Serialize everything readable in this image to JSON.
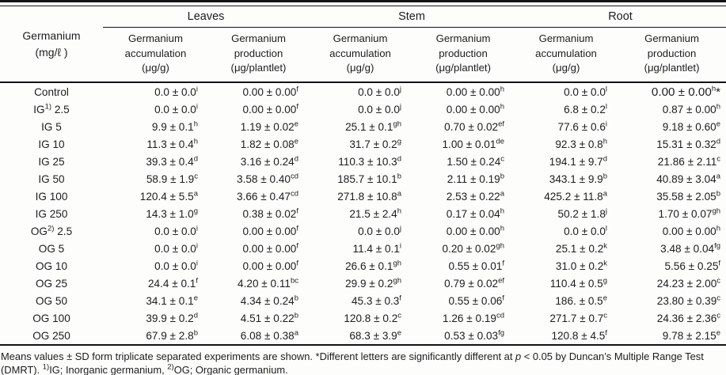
{
  "table": {
    "corner": {
      "line1": "Germanium",
      "line2": "(mg/ℓ )"
    },
    "groups": [
      "Leaves",
      "Stem",
      "Root"
    ],
    "sub": [
      [
        "Germanium",
        "accumulation",
        "(μg/g)"
      ],
      [
        "Germanium",
        "production",
        "(μg/plantlet)"
      ]
    ],
    "rows": [
      {
        "label": {
          "pre": "Control",
          "sup": "",
          "post": ""
        },
        "cells": [
          {
            "v": "0.0 ± 0.0",
            "s": "i"
          },
          {
            "v": "0.00 ± 0.00",
            "s": "f"
          },
          {
            "v": "0.0 ± 0.0",
            "s": "j"
          },
          {
            "v": "0.00 ± 0.00",
            "s": "h"
          },
          {
            "v": "0.0 ± 0.0",
            "s": "l"
          },
          {
            "v": "0.00 ± 0.00",
            "s": "h",
            "star": "*",
            "big": true
          }
        ]
      },
      {
        "label": {
          "pre": "IG",
          "sup": "1)",
          "post": " 2.5"
        },
        "cells": [
          {
            "v": "0.0 ± 0.0",
            "s": "i"
          },
          {
            "v": "0.00 ± 0.00",
            "s": "f"
          },
          {
            "v": "0.0 ± 0.0",
            "s": "j"
          },
          {
            "v": "0.00 ± 0.00",
            "s": "h"
          },
          {
            "v": "6.8 ± 0.2",
            "s": "l"
          },
          {
            "v": "0.87 ± 0.00",
            "s": "h"
          }
        ]
      },
      {
        "label": {
          "pre": "IG 5",
          "sup": "",
          "post": ""
        },
        "cells": [
          {
            "v": "9.9 ± 0.1",
            "s": "h"
          },
          {
            "v": "1.19 ± 0.02",
            "s": "e"
          },
          {
            "v": "25.1 ± 0.1",
            "s": "gh"
          },
          {
            "v": "0.70 ± 0.02",
            "s": "ef"
          },
          {
            "v": "77.6 ± 0.6",
            "s": "i"
          },
          {
            "v": "9.18 ± 0.60",
            "s": "e"
          }
        ]
      },
      {
        "label": {
          "pre": "IG 10",
          "sup": "",
          "post": ""
        },
        "cells": [
          {
            "v": "11.3 ± 0.4",
            "s": "h"
          },
          {
            "v": "1.82 ± 0.08",
            "s": "e"
          },
          {
            "v": "31.7 ± 0.2",
            "s": "g"
          },
          {
            "v": "1.00 ± 0.01",
            "s": "de"
          },
          {
            "v": "92.3 ± 0.8",
            "s": "h"
          },
          {
            "v": "15.31 ± 0.32",
            "s": "d"
          }
        ]
      },
      {
        "label": {
          "pre": "IG 25",
          "sup": "",
          "post": ""
        },
        "cells": [
          {
            "v": "39.3 ± 0.4",
            "s": "d"
          },
          {
            "v": "3.16 ± 0.24",
            "s": "d"
          },
          {
            "v": "110.3 ± 10.3",
            "s": "d"
          },
          {
            "v": "1.50 ± 0.24",
            "s": "c"
          },
          {
            "v": "194.1 ± 9.7",
            "s": "d"
          },
          {
            "v": "21.86 ± 2.11",
            "s": "c"
          }
        ]
      },
      {
        "label": {
          "pre": "IG 50",
          "sup": "",
          "post": ""
        },
        "cells": [
          {
            "v": "58.9 ± 1.9",
            "s": "c"
          },
          {
            "v": "3.58 ± 0.40",
            "s": "cd"
          },
          {
            "v": "185.7 ± 10.1",
            "s": "b"
          },
          {
            "v": "2.11 ± 0.19",
            "s": "b"
          },
          {
            "v": "343.1 ± 9.9",
            "s": "b"
          },
          {
            "v": "40.89 ± 3.04",
            "s": "a"
          }
        ]
      },
      {
        "label": {
          "pre": "IG 100",
          "sup": "",
          "post": ""
        },
        "cells": [
          {
            "v": "120.4 ± 5.5",
            "s": "a"
          },
          {
            "v": "3.66 ± 0.47",
            "s": "cd"
          },
          {
            "v": "271.8 ± 10.8",
            "s": "a"
          },
          {
            "v": "2.53 ± 0.22",
            "s": "a"
          },
          {
            "v": "425.2 ± 11.8",
            "s": "a"
          },
          {
            "v": "35.58 ± 2.05",
            "s": "b"
          }
        ]
      },
      {
        "label": {
          "pre": "IG 250",
          "sup": "",
          "post": ""
        },
        "cells": [
          {
            "v": "14.3 ± 1.0",
            "s": "g"
          },
          {
            "v": "0.38 ± 0.02",
            "s": "f"
          },
          {
            "v": "21.5 ± 2.4",
            "s": "h"
          },
          {
            "v": "0.17 ± 0.04",
            "s": "h"
          },
          {
            "v": "50.2 ± 1.8",
            "s": "j"
          },
          {
            "v": "1.70 ± 0.07",
            "s": "gh"
          }
        ]
      },
      {
        "label": {
          "pre": "OG",
          "sup": "2)",
          "post": " 2.5"
        },
        "cells": [
          {
            "v": "0.0 ± 0.0",
            "s": "i"
          },
          {
            "v": "0.00 ± 0.00",
            "s": "f"
          },
          {
            "v": "0.0 ± 0.0",
            "s": "j"
          },
          {
            "v": "0.00 ± 0.00",
            "s": "h"
          },
          {
            "v": "0.0 ± 0.0",
            "s": "l"
          },
          {
            "v": "0.00 ± 0.00",
            "s": "h"
          }
        ]
      },
      {
        "label": {
          "pre": "OG 5",
          "sup": "",
          "post": ""
        },
        "cells": [
          {
            "v": "0.0 ± 0.0",
            "s": "i"
          },
          {
            "v": "0.00 ± 0.00",
            "s": "f"
          },
          {
            "v": "11.4 ± 0.1",
            "s": "i"
          },
          {
            "v": "0.20 ± 0.02",
            "s": "gh"
          },
          {
            "v": "25.1 ± 0.2",
            "s": "k"
          },
          {
            "v": "3.48 ± 0.04",
            "s": "fg"
          }
        ]
      },
      {
        "label": {
          "pre": "OG 10",
          "sup": "",
          "post": ""
        },
        "cells": [
          {
            "v": "0.0 ± 0.0",
            "s": "i"
          },
          {
            "v": "0.00 ± 0.00",
            "s": "f"
          },
          {
            "v": "26.6 ± 0.1",
            "s": "gh"
          },
          {
            "v": "0.55 ± 0.01",
            "s": "f"
          },
          {
            "v": "31.0 ± 0.2",
            "s": "k"
          },
          {
            "v": "5.56 ± 0.25",
            "s": "f"
          }
        ]
      },
      {
        "label": {
          "pre": "OG 25",
          "sup": "",
          "post": ""
        },
        "cells": [
          {
            "v": "24.4 ± 0.1",
            "s": "f"
          },
          {
            "v": "4.20 ± 0.11",
            "s": "bc"
          },
          {
            "v": "29.9 ± 0.2",
            "s": "gh"
          },
          {
            "v": "0.79 ± 0.02",
            "s": "ef"
          },
          {
            "v": "110.4 ± 0.5",
            "s": "g"
          },
          {
            "v": "24.23 ± 2.00",
            "s": "c"
          }
        ]
      },
      {
        "label": {
          "pre": "OG 50",
          "sup": "",
          "post": ""
        },
        "cells": [
          {
            "v": "34.1 ± 0.1",
            "s": "e"
          },
          {
            "v": "4.34 ± 0.24",
            "s": "b"
          },
          {
            "v": "45.3 ± 0.3",
            "s": "f"
          },
          {
            "v": "0.55 ± 0.06",
            "s": "f"
          },
          {
            "v": "186. ± 0.5",
            "s": "e"
          },
          {
            "v": "23.80 ± 0.39",
            "s": "c"
          }
        ]
      },
      {
        "label": {
          "pre": "OG 100",
          "sup": "",
          "post": ""
        },
        "cells": [
          {
            "v": "39.9 ± 0.2",
            "s": "d"
          },
          {
            "v": "4.51 ± 0.22",
            "s": "b"
          },
          {
            "v": "120.8 ± 0.2",
            "s": "c"
          },
          {
            "v": "1.26 ± 0.19",
            "s": "cd"
          },
          {
            "v": "271.7 ± 0.7",
            "s": "c"
          },
          {
            "v": "24.36 ± 2.36",
            "s": "c"
          }
        ]
      },
      {
        "label": {
          "pre": "OG 250",
          "sup": "",
          "post": ""
        },
        "cells": [
          {
            "v": "67.9 ± 2.8",
            "s": "b"
          },
          {
            "v": "6.08 ± 0.38",
            "s": "a"
          },
          {
            "v": "68.3 ± 3.9",
            "s": "e"
          },
          {
            "v": "0.53 ± 0.03",
            "s": "fg"
          },
          {
            "v": "120.8 ± 4.5",
            "s": "f"
          },
          {
            "v": "9.78 ± 2.15",
            "s": "e"
          }
        ]
      }
    ]
  },
  "footnote": {
    "t1": "Means values ± SD form triplicate separated experiments are shown. *Different letters are significantly different at ",
    "p": "p",
    "t2": " < 0.05 by Duncan’s Multiple Range Test (DMRT). ",
    "sup1": "1)",
    "t3": "IG; Inorganic germanium, ",
    "sup2": "2)",
    "t4": "OG; Organic germanium."
  }
}
